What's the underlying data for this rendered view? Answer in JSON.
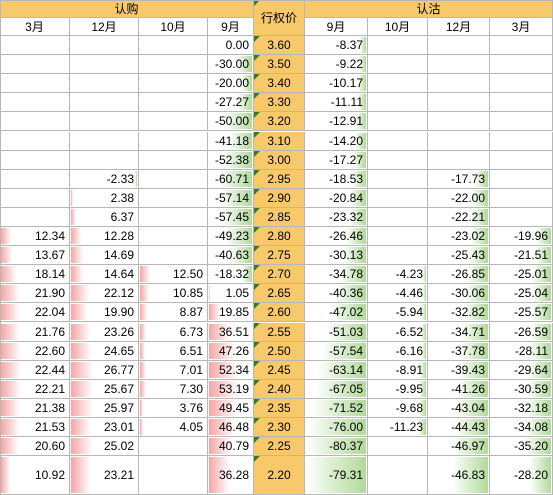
{
  "header": {
    "call_label": "认购",
    "strike_label": "行权价",
    "put_label": "认沽"
  },
  "call_months": [
    "3月",
    "12月",
    "10月",
    "9月"
  ],
  "put_months": [
    "9月",
    "10月",
    "12月",
    "3月"
  ],
  "colors": {
    "header_bg": "#f7c96a",
    "grid_line": "#b7b7b7",
    "positive_bar": "#f49696",
    "negative_bar": "#96cd78",
    "corner_mark": "#2e7d32"
  },
  "rows": [
    {
      "strike": "3.60",
      "call": [
        "",
        "",
        "",
        "0.00"
      ],
      "put": [
        "-8.37",
        "",
        "",
        ""
      ]
    },
    {
      "strike": "3.50",
      "call": [
        "",
        "",
        "",
        "-30.00"
      ],
      "put": [
        "-9.22",
        "",
        "",
        ""
      ]
    },
    {
      "strike": "3.40",
      "call": [
        "",
        "",
        "",
        "-20.00"
      ],
      "put": [
        "-10.17",
        "",
        "",
        ""
      ]
    },
    {
      "strike": "3.30",
      "call": [
        "",
        "",
        "",
        "-27.27"
      ],
      "put": [
        "-11.11",
        "",
        "",
        ""
      ]
    },
    {
      "strike": "3.20",
      "call": [
        "",
        "",
        "",
        "-50.00"
      ],
      "put": [
        "-12.91",
        "",
        "",
        ""
      ]
    },
    {
      "strike": "3.10",
      "call": [
        "",
        "",
        "",
        "-41.18"
      ],
      "put": [
        "-14.20",
        "",
        "",
        ""
      ]
    },
    {
      "strike": "3.00",
      "call": [
        "",
        "",
        "",
        "-52.38"
      ],
      "put": [
        "-17.27",
        "",
        "",
        ""
      ]
    },
    {
      "strike": "2.95",
      "call": [
        "",
        "-2.33",
        "",
        "-60.71"
      ],
      "put": [
        "-18.53",
        "",
        "-17.73",
        ""
      ]
    },
    {
      "strike": "2.90",
      "call": [
        "",
        "2.38",
        "",
        "-57.14"
      ],
      "put": [
        "-20.84",
        "",
        "-22.00",
        ""
      ]
    },
    {
      "strike": "2.85",
      "call": [
        "",
        "6.37",
        "",
        "-57.45"
      ],
      "put": [
        "-23.32",
        "",
        "-22.21",
        ""
      ]
    },
    {
      "strike": "2.80",
      "call": [
        "12.34",
        "12.28",
        "",
        "-49.23"
      ],
      "put": [
        "-26.46",
        "",
        "-23.02",
        "-19.96"
      ]
    },
    {
      "strike": "2.75",
      "call": [
        "13.67",
        "14.69",
        "",
        "-40.63"
      ],
      "put": [
        "-30.13",
        "",
        "-25.43",
        "-21.51"
      ]
    },
    {
      "strike": "2.70",
      "call": [
        "18.14",
        "14.64",
        "12.50",
        "-18.32"
      ],
      "put": [
        "-34.78",
        "-4.23",
        "-26.85",
        "-25.01"
      ]
    },
    {
      "strike": "2.65",
      "call": [
        "21.90",
        "22.12",
        "10.85",
        "1.05"
      ],
      "put": [
        "-40.36",
        "-4.46",
        "-30.06",
        "-25.04"
      ]
    },
    {
      "strike": "2.60",
      "call": [
        "22.04",
        "19.90",
        "8.87",
        "19.85"
      ],
      "put": [
        "-47.02",
        "-5.94",
        "-32.82",
        "-25.57"
      ]
    },
    {
      "strike": "2.55",
      "call": [
        "21.76",
        "23.26",
        "6.73",
        "36.51"
      ],
      "put": [
        "-51.03",
        "-6.52",
        "-34.71",
        "-26.59"
      ]
    },
    {
      "strike": "2.50",
      "call": [
        "22.60",
        "24.65",
        "6.51",
        "47.26"
      ],
      "put": [
        "-57.54",
        "-6.16",
        "-37.78",
        "-28.11"
      ]
    },
    {
      "strike": "2.45",
      "call": [
        "22.44",
        "26.77",
        "7.01",
        "52.34"
      ],
      "put": [
        "-63.14",
        "-8.91",
        "-39.43",
        "-29.64"
      ]
    },
    {
      "strike": "2.40",
      "call": [
        "22.21",
        "25.67",
        "7.30",
        "53.19"
      ],
      "put": [
        "-67.05",
        "-9.95",
        "-41.26",
        "-30.59"
      ]
    },
    {
      "strike": "2.35",
      "call": [
        "21.38",
        "25.97",
        "3.76",
        "49.45"
      ],
      "put": [
        "-71.52",
        "-9.68",
        "-43.04",
        "-32.18"
      ]
    },
    {
      "strike": "2.30",
      "call": [
        "21.53",
        "23.01",
        "4.05",
        "46.48"
      ],
      "put": [
        "-76.00",
        "-11.23",
        "-44.43",
        "-34.08"
      ]
    },
    {
      "strike": "2.25",
      "call": [
        "20.60",
        "25.02",
        "",
        "40.79"
      ],
      "put": [
        "-80.37",
        "",
        "-46.97",
        "-35.20"
      ]
    },
    {
      "strike": "2.20",
      "call": [
        "10.92",
        "23.21",
        "",
        "36.28"
      ],
      "put": [
        "-79.31",
        "",
        "-46.83",
        "-28.20"
      ]
    }
  ]
}
